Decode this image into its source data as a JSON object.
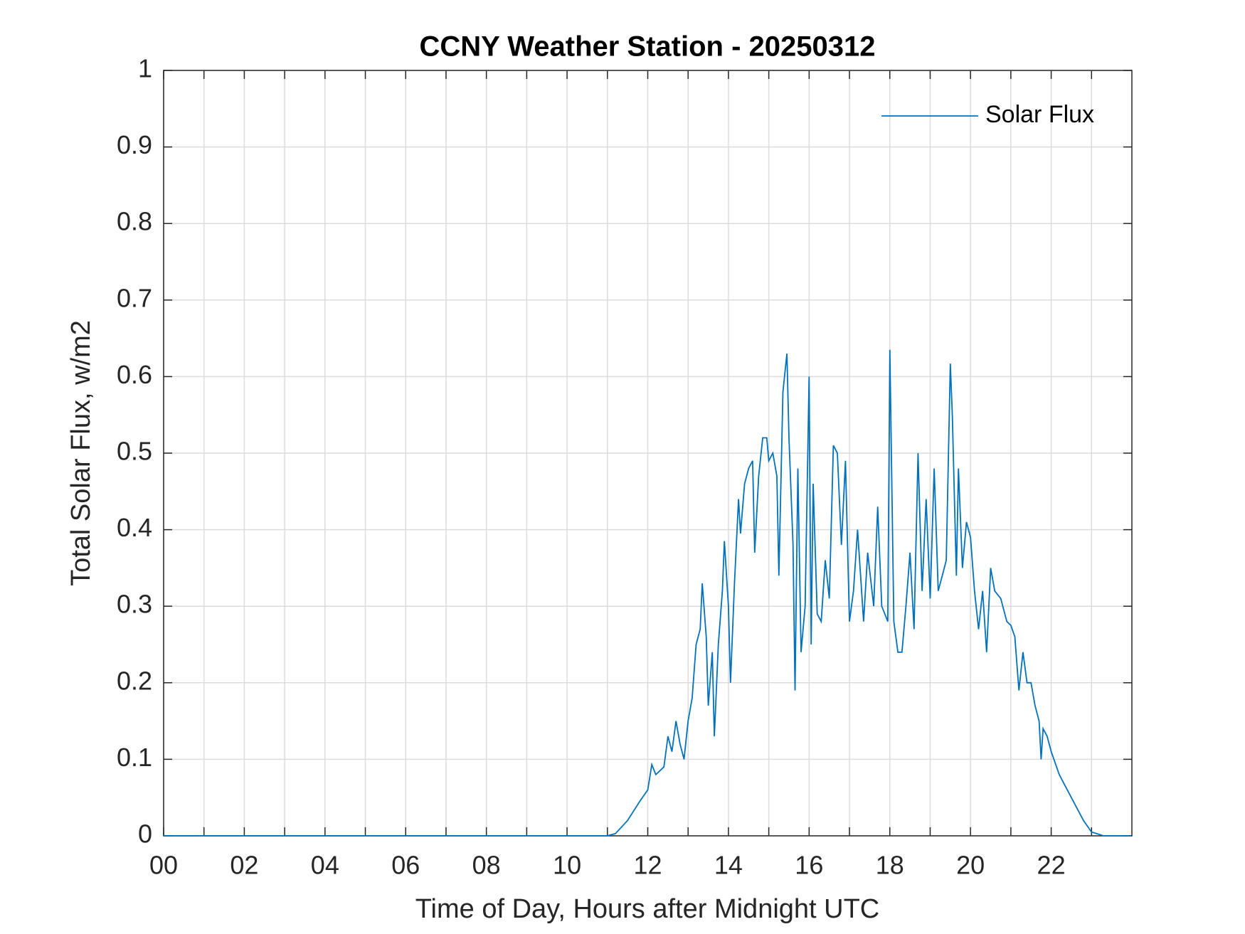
{
  "chart_data": {
    "type": "line",
    "title": "CCNY Weather Station - 20250312",
    "xlabel": "Time of Day, Hours after Midnight UTC",
    "ylabel": "Total Solar Flux, w/m2",
    "xlim": [
      0,
      24
    ],
    "ylim": [
      0,
      1
    ],
    "xticks": [
      {
        "value": 0,
        "label": "00"
      },
      {
        "value": 2,
        "label": "02"
      },
      {
        "value": 4,
        "label": "04"
      },
      {
        "value": 6,
        "label": "06"
      },
      {
        "value": 8,
        "label": "08"
      },
      {
        "value": 10,
        "label": "10"
      },
      {
        "value": 12,
        "label": "12"
      },
      {
        "value": 14,
        "label": "14"
      },
      {
        "value": 16,
        "label": "16"
      },
      {
        "value": 18,
        "label": "18"
      },
      {
        "value": 20,
        "label": "20"
      },
      {
        "value": 22,
        "label": "22"
      }
    ],
    "yticks": [
      0,
      0.1,
      0.2,
      0.3,
      0.4,
      0.5,
      0.6,
      0.7,
      0.8,
      0.9,
      1
    ],
    "grid": true,
    "minor_x_grid": true,
    "legend": "northeast",
    "x": [
      0,
      11,
      11.2,
      11.5,
      11.8,
      12.0,
      12.1,
      12.2,
      12.4,
      12.5,
      12.6,
      12.7,
      12.8,
      12.9,
      13.0,
      13.1,
      13.2,
      13.3,
      13.35,
      13.45,
      13.5,
      13.6,
      13.65,
      13.75,
      13.85,
      13.9,
      14.0,
      14.05,
      14.15,
      14.25,
      14.3,
      14.4,
      14.5,
      14.6,
      14.65,
      14.75,
      14.85,
      14.95,
      15.0,
      15.1,
      15.2,
      15.25,
      15.35,
      15.45,
      15.5,
      15.6,
      15.65,
      15.72,
      15.8,
      15.9,
      16.0,
      16.05,
      16.1,
      16.2,
      16.3,
      16.4,
      16.5,
      16.6,
      16.7,
      16.8,
      16.9,
      17.0,
      17.1,
      17.2,
      17.35,
      17.45,
      17.6,
      17.7,
      17.8,
      17.95,
      18.0,
      18.1,
      18.2,
      18.3,
      18.4,
      18.5,
      18.6,
      18.7,
      18.8,
      18.9,
      19.0,
      19.1,
      19.2,
      19.3,
      19.4,
      19.5,
      19.55,
      19.65,
      19.7,
      19.8,
      19.9,
      20.0,
      20.1,
      20.2,
      20.3,
      20.4,
      20.5,
      20.6,
      20.75,
      20.9,
      21.0,
      21.1,
      21.2,
      21.3,
      21.4,
      21.5,
      21.6,
      21.7,
      21.75,
      21.8,
      21.9,
      22.0,
      22.2,
      22.5,
      22.8,
      23.0,
      23.3,
      23.98
    ],
    "series": [
      {
        "name": "Solar Flux",
        "color": "#0072bd",
        "values": [
          0,
          0,
          0.003,
          0.02,
          0.045,
          0.06,
          0.093,
          0.08,
          0.09,
          0.13,
          0.11,
          0.15,
          0.12,
          0.1,
          0.15,
          0.18,
          0.25,
          0.27,
          0.33,
          0.26,
          0.17,
          0.24,
          0.13,
          0.25,
          0.32,
          0.385,
          0.3,
          0.2,
          0.33,
          0.44,
          0.395,
          0.46,
          0.48,
          0.49,
          0.37,
          0.47,
          0.52,
          0.52,
          0.49,
          0.5,
          0.47,
          0.34,
          0.58,
          0.63,
          0.52,
          0.38,
          0.19,
          0.48,
          0.24,
          0.3,
          0.6,
          0.25,
          0.46,
          0.29,
          0.28,
          0.36,
          0.31,
          0.51,
          0.5,
          0.38,
          0.49,
          0.28,
          0.32,
          0.4,
          0.28,
          0.37,
          0.3,
          0.43,
          0.3,
          0.28,
          0.635,
          0.28,
          0.24,
          0.24,
          0.3,
          0.37,
          0.27,
          0.5,
          0.32,
          0.44,
          0.31,
          0.48,
          0.32,
          0.34,
          0.36,
          0.617,
          0.55,
          0.34,
          0.48,
          0.35,
          0.41,
          0.39,
          0.32,
          0.27,
          0.32,
          0.24,
          0.35,
          0.32,
          0.31,
          0.28,
          0.275,
          0.26,
          0.19,
          0.24,
          0.2,
          0.2,
          0.17,
          0.15,
          0.1,
          0.14,
          0.13,
          0.11,
          0.08,
          0.05,
          0.02,
          0.005,
          0,
          0
        ]
      }
    ]
  }
}
